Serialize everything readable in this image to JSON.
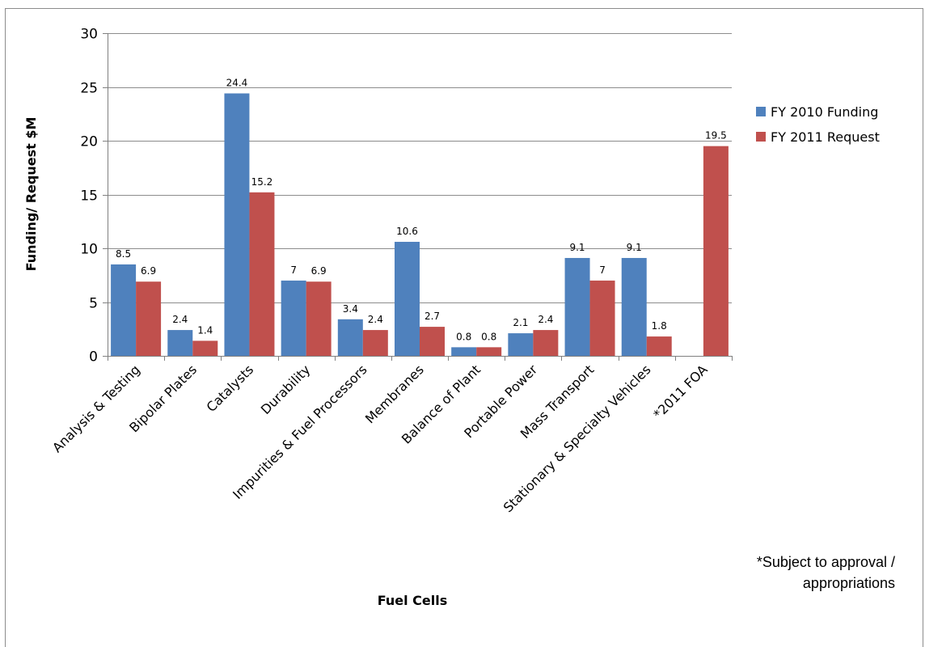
{
  "chart_data": {
    "type": "bar",
    "title": "",
    "xlabel": "Fuel Cells",
    "ylabel": "Funding/ Request $M",
    "ylim": [
      0,
      30
    ],
    "yticks": [
      0,
      5,
      10,
      15,
      20,
      25,
      30
    ],
    "grid": true,
    "legend_position": "right",
    "categories": [
      "Analysis & Testing",
      "Bipolar Plates",
      "Catalysts",
      "Durability",
      "Impurities & Fuel Processors",
      "Membranes",
      "Balance of Plant",
      "Portable Power",
      "Mass Transport",
      "Stationary & Specialty Vehicles",
      "*2011 FOA"
    ],
    "series": [
      {
        "name": "FY 2010 Funding",
        "color": "#4f81bd",
        "values": [
          8.5,
          2.4,
          24.4,
          7,
          3.4,
          10.6,
          0.8,
          2.1,
          9.1,
          9.1,
          null
        ]
      },
      {
        "name": "FY 2011 Request",
        "color": "#c0504d",
        "values": [
          6.9,
          1.4,
          15.2,
          6.9,
          2.4,
          2.7,
          0.8,
          2.4,
          7,
          1.8,
          19.5
        ]
      }
    ],
    "footnote_lines": [
      "*Subject to approval /",
      "appropriations"
    ]
  }
}
